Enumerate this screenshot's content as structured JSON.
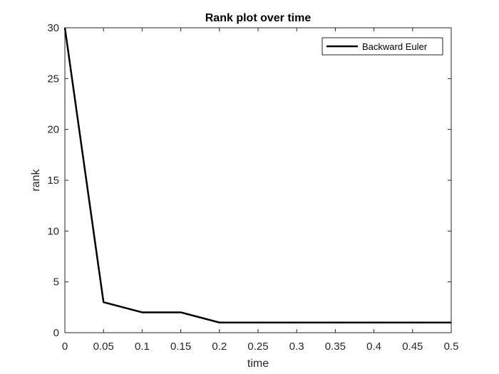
{
  "chart_data": {
    "type": "line",
    "title": "Rank plot over time",
    "xlabel": "time",
    "ylabel": "rank",
    "xlim": [
      0,
      0.5
    ],
    "ylim": [
      0,
      30
    ],
    "xticks": [
      0,
      0.05,
      0.1,
      0.15,
      0.2,
      0.25,
      0.3,
      0.35,
      0.4,
      0.45,
      0.5
    ],
    "xtick_labels": [
      "0",
      "0.05",
      "0.1",
      "0.15",
      "0.2",
      "0.25",
      "0.3",
      "0.35",
      "0.4",
      "0.45",
      "0.5"
    ],
    "yticks": [
      0,
      5,
      10,
      15,
      20,
      25,
      30
    ],
    "ytick_labels": [
      "0",
      "5",
      "10",
      "15",
      "20",
      "25",
      "30"
    ],
    "grid": false,
    "legend_position": "top-right",
    "series": [
      {
        "name": "Backward Euler",
        "color": "#000000",
        "x": [
          0,
          0.05,
          0.1,
          0.15,
          0.2,
          0.25,
          0.3,
          0.35,
          0.4,
          0.45,
          0.5
        ],
        "y": [
          30,
          3,
          2,
          2,
          1,
          1,
          1,
          1,
          1,
          1,
          1
        ]
      }
    ]
  }
}
